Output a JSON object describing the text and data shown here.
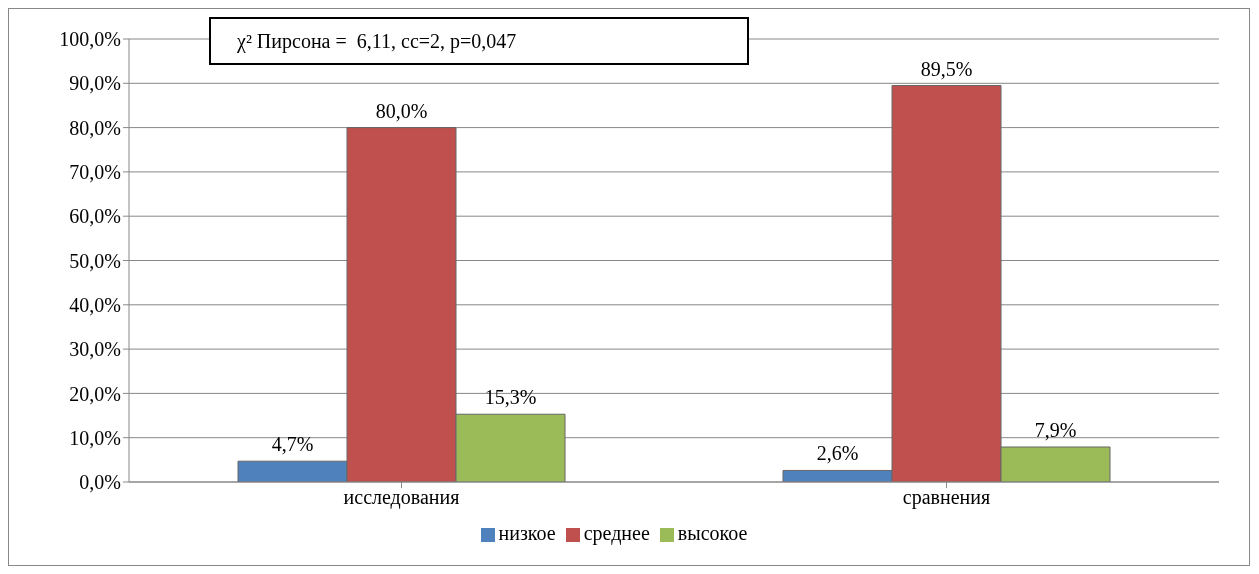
{
  "chart_data": {
    "type": "bar",
    "categories": [
      "исследования",
      "сравнения"
    ],
    "series": [
      {
        "name": "низкое",
        "color": "#4f81bd",
        "values": [
          4.7,
          2.6
        ],
        "value_labels": [
          "4,7%",
          "2,6%"
        ]
      },
      {
        "name": "среднее",
        "color": "#c0504d",
        "values": [
          80.0,
          89.5
        ],
        "value_labels": [
          "80,0%",
          "89,5%"
        ]
      },
      {
        "name": "высокое",
        "color": "#9bbb59",
        "values": [
          15.3,
          7.9
        ],
        "value_labels": [
          "15,3%",
          "7,9%"
        ]
      }
    ],
    "ylim": [
      0,
      100
    ],
    "yticks": [
      {
        "value": 0,
        "label": "0,0%"
      },
      {
        "value": 10,
        "label": "10,0%"
      },
      {
        "value": 20,
        "label": "20,0%"
      },
      {
        "value": 30,
        "label": "30,0%"
      },
      {
        "value": 40,
        "label": "40,0%"
      },
      {
        "value": 50,
        "label": "50,0%"
      },
      {
        "value": 60,
        "label": "60,0%"
      },
      {
        "value": 70,
        "label": "70,0%"
      },
      {
        "value": 80,
        "label": "80,0%"
      },
      {
        "value": 90,
        "label": "90,0%"
      },
      {
        "value": 100,
        "label": "100,0%"
      }
    ],
    "grid": "y",
    "legend": "bottom",
    "annotations": [
      "χ² Пирсона =  6,11, cc=2, p=0,047"
    ]
  }
}
